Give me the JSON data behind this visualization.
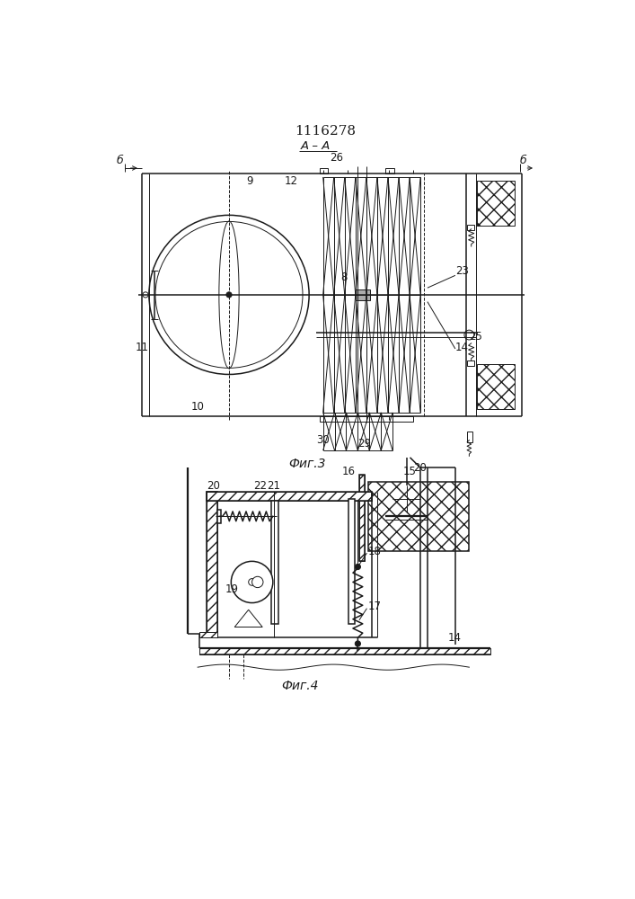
{
  "title": "1116278",
  "fig3_label": "Фиг.3",
  "fig4_label": "Фиг.4",
  "line_color": "#1a1a1a"
}
